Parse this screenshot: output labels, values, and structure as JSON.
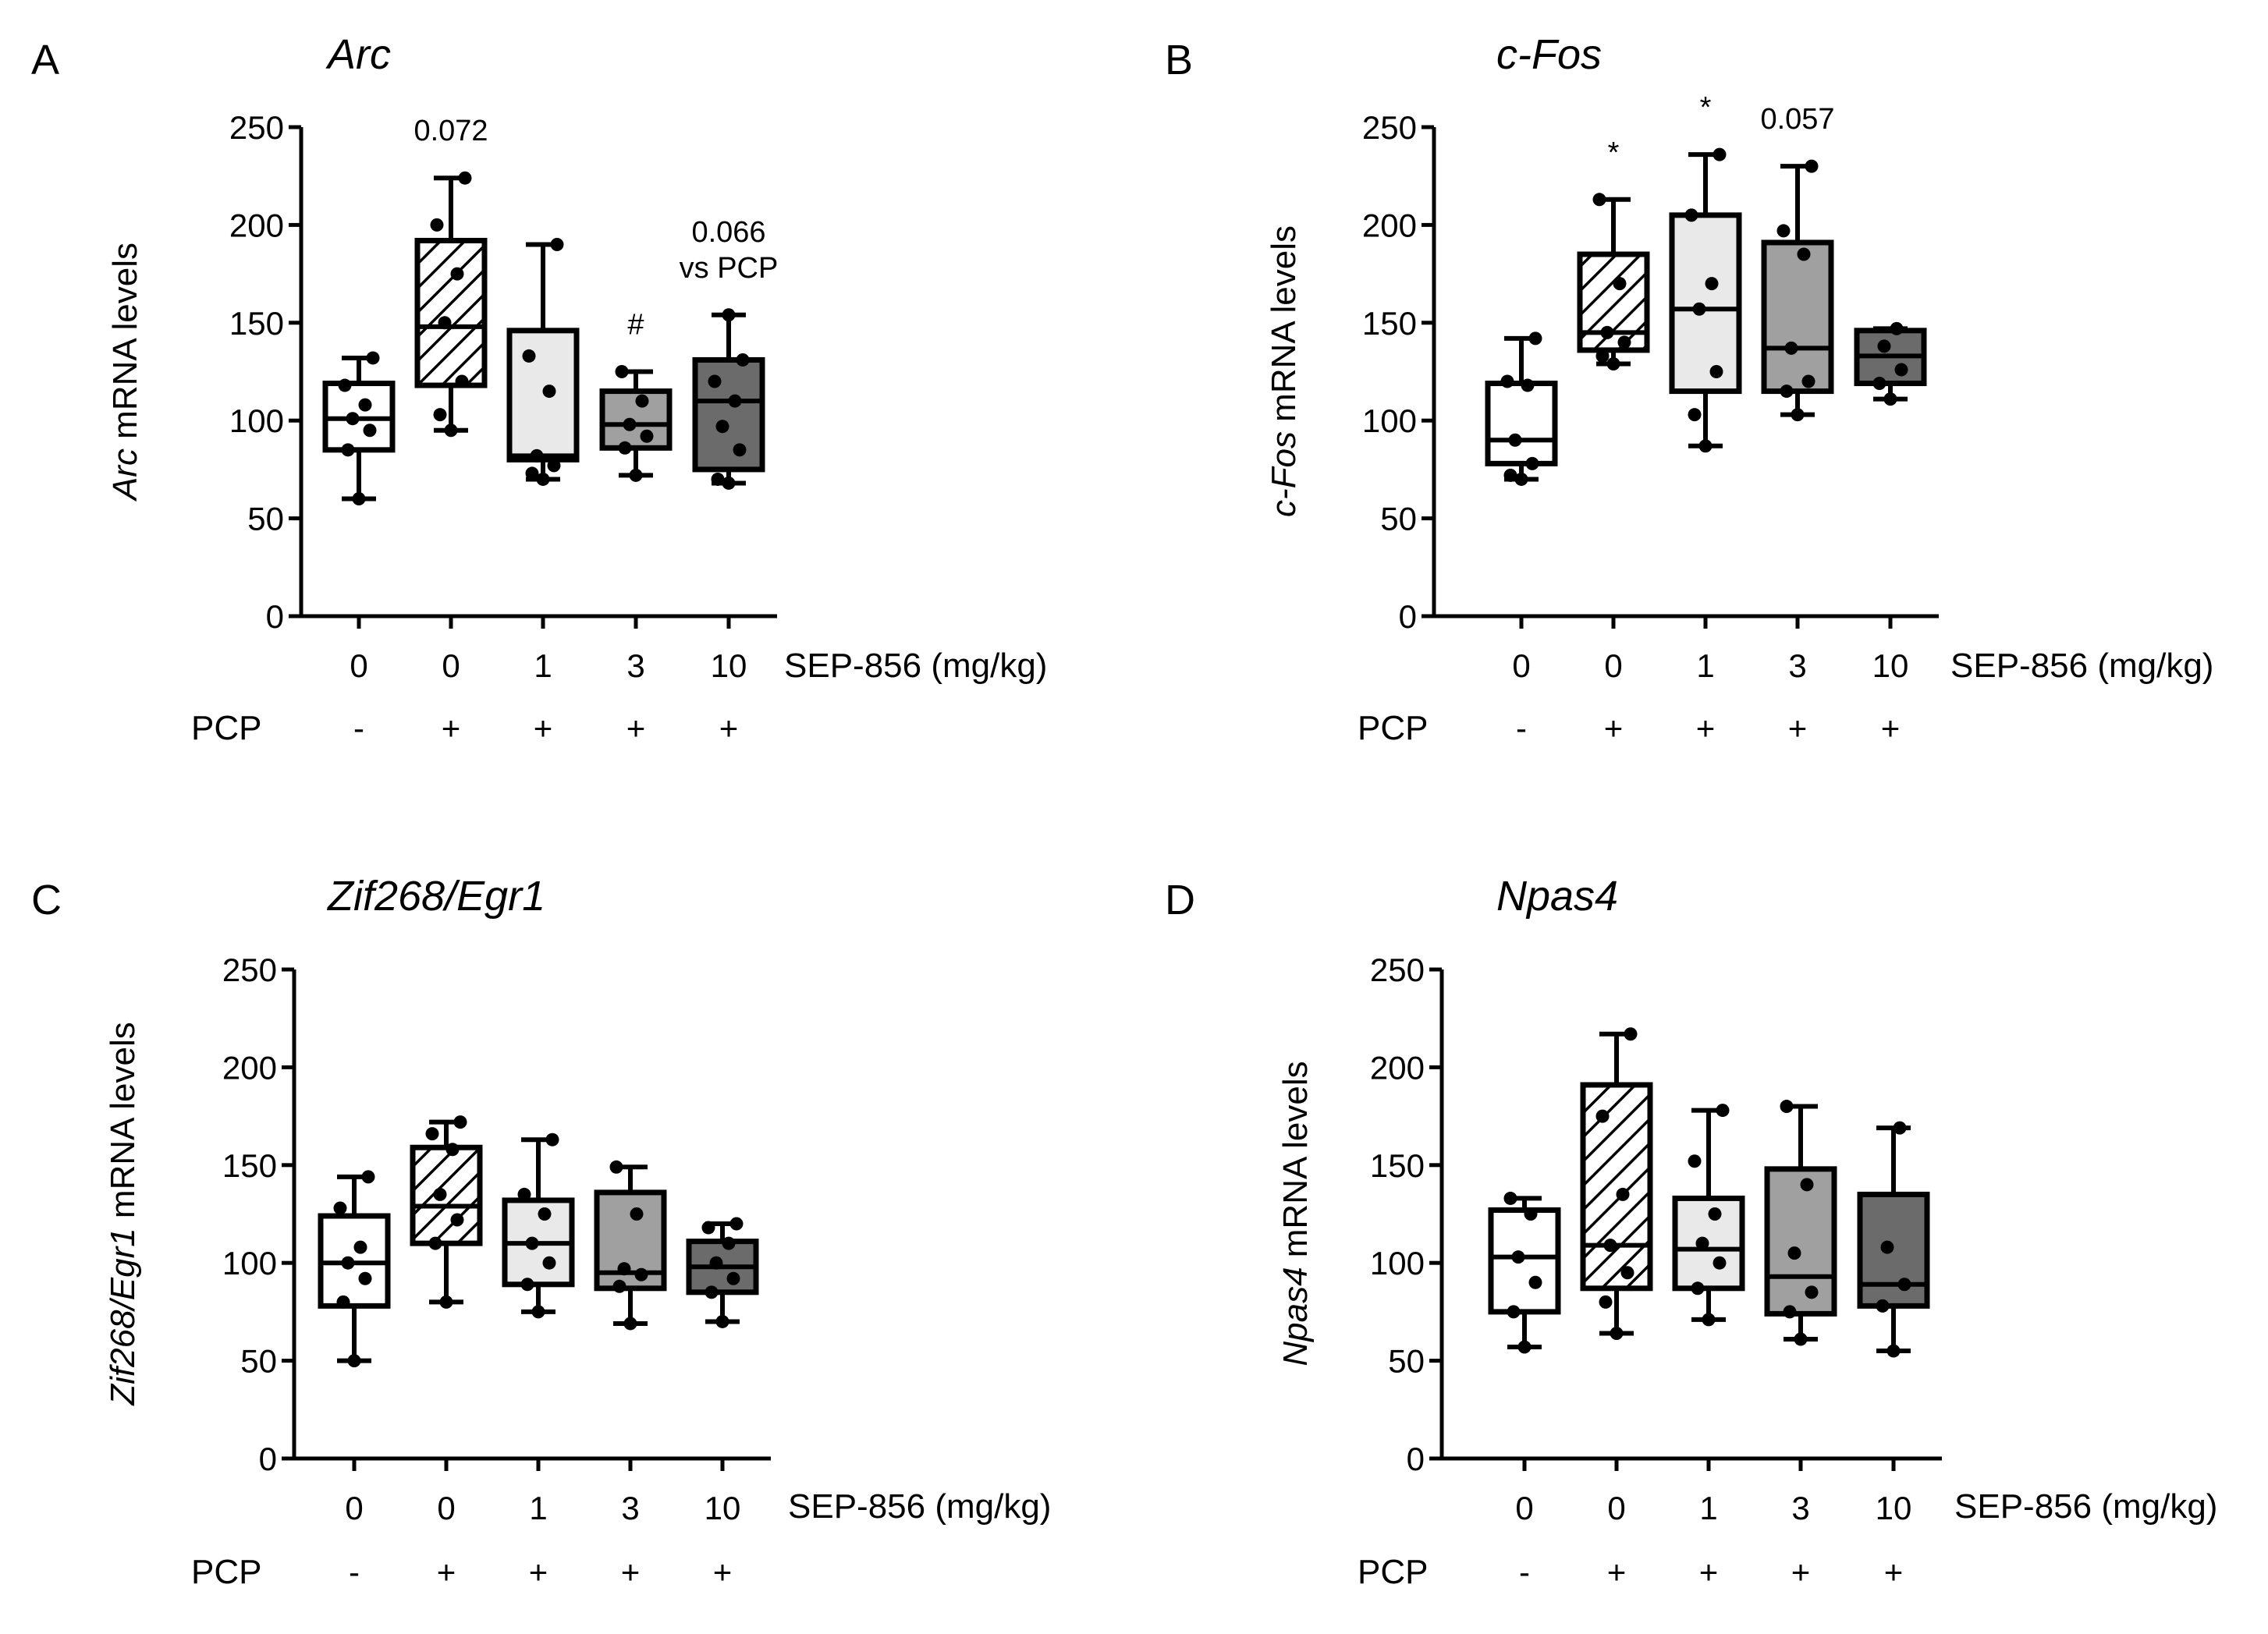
{
  "figure": {
    "x_axis_label": "SEP-856 (mg/kg)",
    "pcp_label": "PCP",
    "y_label_suffix": " mRNA levels"
  },
  "chart_data": [
    {
      "panel": "A",
      "type": "box",
      "title": "Arc",
      "ylabel_gene": "Arc",
      "ylim": [
        0,
        250
      ],
      "yticks": [
        0,
        50,
        100,
        150,
        200,
        250
      ],
      "categories": [
        "0",
        "0",
        "1",
        "3",
        "10"
      ],
      "pcp": [
        "-",
        "+",
        "+",
        "+",
        "+"
      ],
      "fills": [
        "#ffffff",
        "hatch",
        "#e9e9e9",
        "#a0a0a0",
        "#6b6b6b"
      ],
      "boxes": [
        {
          "min": 60,
          "q1": 85,
          "median": 101,
          "q3": 119,
          "max": 132,
          "points": [
            60,
            85,
            95,
            101,
            108,
            118,
            132
          ]
        },
        {
          "min": 95,
          "q1": 118,
          "median": 148,
          "q3": 192,
          "max": 224,
          "points": [
            95,
            103,
            120,
            150,
            175,
            200,
            224
          ]
        },
        {
          "min": 70,
          "q1": 80,
          "median": 82,
          "q3": 146,
          "max": 190,
          "points": [
            70,
            73,
            77,
            82,
            115,
            133,
            190
          ]
        },
        {
          "min": 72,
          "q1": 86,
          "median": 98,
          "q3": 115,
          "max": 125,
          "points": [
            72,
            86,
            92,
            98,
            110,
            125
          ]
        },
        {
          "min": 68,
          "q1": 75,
          "median": 110,
          "q3": 131,
          "max": 154,
          "points": [
            68,
            70,
            85,
            97,
            110,
            120,
            131,
            154
          ]
        }
      ],
      "annotations": [
        {
          "category_index": 1,
          "lines": [
            "0.072"
          ]
        },
        {
          "category_index": 3,
          "lines": [
            "#"
          ]
        },
        {
          "category_index": 4,
          "lines": [
            "0.066",
            "vs PCP"
          ]
        }
      ]
    },
    {
      "panel": "B",
      "type": "box",
      "title": "c-Fos",
      "ylabel_gene": "c-Fos",
      "ylim": [
        0,
        250
      ],
      "yticks": [
        0,
        50,
        100,
        150,
        200,
        250
      ],
      "categories": [
        "0",
        "0",
        "1",
        "3",
        "10"
      ],
      "pcp": [
        "-",
        "+",
        "+",
        "+",
        "+"
      ],
      "fills": [
        "#ffffff",
        "hatch",
        "#e9e9e9",
        "#a0a0a0",
        "#6b6b6b"
      ],
      "boxes": [
        {
          "min": 70,
          "q1": 78,
          "median": 90,
          "q3": 119,
          "max": 142,
          "points": [
            70,
            72,
            78,
            90,
            118,
            120,
            142
          ]
        },
        {
          "min": 129,
          "q1": 136,
          "median": 145,
          "q3": 185,
          "max": 213,
          "points": [
            129,
            133,
            140,
            145,
            170,
            213
          ]
        },
        {
          "min": 87,
          "q1": 115,
          "median": 157,
          "q3": 205,
          "max": 236,
          "points": [
            87,
            103,
            125,
            157,
            170,
            205,
            236
          ]
        },
        {
          "min": 103,
          "q1": 115,
          "median": 137,
          "q3": 191,
          "max": 230,
          "points": [
            103,
            115,
            120,
            137,
            185,
            197,
            230
          ]
        },
        {
          "min": 111,
          "q1": 119,
          "median": 133,
          "q3": 146,
          "max": 147,
          "points": [
            111,
            119,
            126,
            138,
            147
          ]
        }
      ],
      "annotations": [
        {
          "category_index": 1,
          "lines": [
            "*"
          ]
        },
        {
          "category_index": 2,
          "lines": [
            "*"
          ]
        },
        {
          "category_index": 3,
          "lines": [
            "0.057"
          ]
        }
      ]
    },
    {
      "panel": "C",
      "type": "box",
      "title": "Zif268/Egr1",
      "ylabel_gene": "Zif268/Egr1",
      "ylim": [
        0,
        250
      ],
      "yticks": [
        0,
        50,
        100,
        150,
        200,
        250
      ],
      "categories": [
        "0",
        "0",
        "1",
        "3",
        "10"
      ],
      "pcp": [
        "-",
        "+",
        "+",
        "+",
        "+"
      ],
      "fills": [
        "#ffffff",
        "hatch",
        "#e9e9e9",
        "#a0a0a0",
        "#6b6b6b"
      ],
      "boxes": [
        {
          "min": 50,
          "q1": 78,
          "median": 100,
          "q3": 124,
          "max": 144,
          "points": [
            50,
            80,
            92,
            100,
            108,
            128,
            144
          ]
        },
        {
          "min": 80,
          "q1": 110,
          "median": 129,
          "q3": 159,
          "max": 172,
          "points": [
            80,
            110,
            122,
            135,
            158,
            166,
            172
          ]
        },
        {
          "min": 75,
          "q1": 89,
          "median": 110,
          "q3": 132,
          "max": 163,
          "points": [
            75,
            89,
            100,
            110,
            125,
            135,
            163
          ]
        },
        {
          "min": 69,
          "q1": 87,
          "median": 95,
          "q3": 136,
          "max": 149,
          "points": [
            69,
            88,
            94,
            97,
            125,
            149
          ]
        },
        {
          "min": 70,
          "q1": 85,
          "median": 98,
          "q3": 111,
          "max": 120,
          "points": [
            70,
            85,
            92,
            100,
            110,
            118,
            120
          ]
        }
      ],
      "annotations": []
    },
    {
      "panel": "D",
      "type": "box",
      "title": "Npas4",
      "ylabel_gene": "Npas4",
      "ylim": [
        0,
        250
      ],
      "yticks": [
        0,
        50,
        100,
        150,
        200,
        250
      ],
      "categories": [
        "0",
        "0",
        "1",
        "3",
        "10"
      ],
      "pcp": [
        "-",
        "+",
        "+",
        "+",
        "+"
      ],
      "fills": [
        "#ffffff",
        "hatch",
        "#e9e9e9",
        "#a0a0a0",
        "#6b6b6b"
      ],
      "boxes": [
        {
          "min": 57,
          "q1": 75,
          "median": 103,
          "q3": 127,
          "max": 133,
          "points": [
            57,
            75,
            90,
            103,
            125,
            133
          ]
        },
        {
          "min": 64,
          "q1": 87,
          "median": 109,
          "q3": 191,
          "max": 217,
          "points": [
            64,
            80,
            95,
            109,
            135,
            175,
            217
          ]
        },
        {
          "min": 71,
          "q1": 87,
          "median": 107,
          "q3": 133,
          "max": 178,
          "points": [
            71,
            87,
            100,
            110,
            125,
            152,
            178
          ]
        },
        {
          "min": 61,
          "q1": 74,
          "median": 93,
          "q3": 148,
          "max": 180,
          "points": [
            61,
            75,
            85,
            105,
            140,
            180
          ]
        },
        {
          "min": 55,
          "q1": 78,
          "median": 89,
          "q3": 135,
          "max": 169,
          "points": [
            55,
            78,
            89,
            108,
            169
          ]
        }
      ],
      "annotations": []
    }
  ]
}
